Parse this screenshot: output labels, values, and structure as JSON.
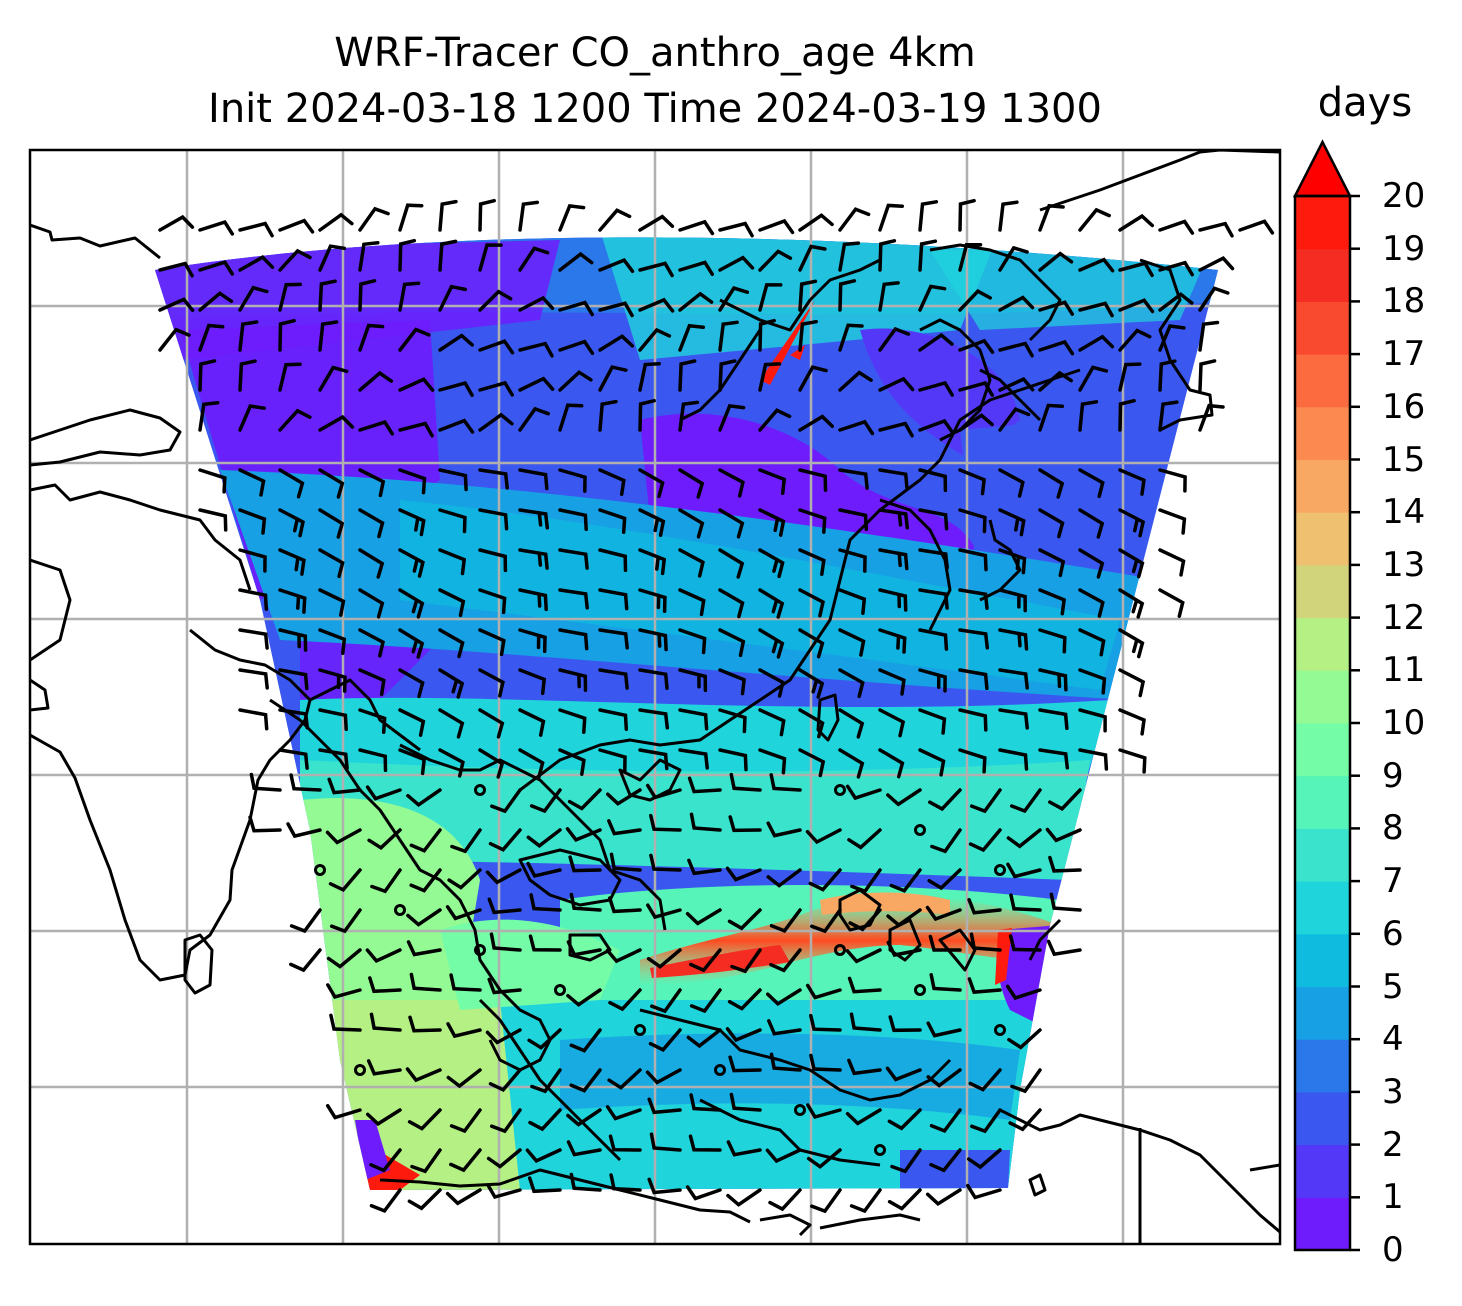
{
  "title": {
    "line1": "WRF-Tracer CO_anthro_age 4km",
    "line2": "Init 2024-03-18 1200 Time 2024-03-19 1300"
  },
  "colorbar": {
    "unit": "days",
    "ticks": [
      "0",
      "1",
      "2",
      "3",
      "4",
      "5",
      "6",
      "7",
      "8",
      "9",
      "10",
      "11",
      "12",
      "13",
      "14",
      "15",
      "16",
      "17",
      "18",
      "19",
      "20"
    ],
    "extend": "max",
    "colors": [
      "#6e1cfc",
      "#5438f8",
      "#3a58f0",
      "#2a78ea",
      "#17a0e4",
      "#0fbce0",
      "#20d4dc",
      "#3ae4cc",
      "#56f4b8",
      "#74fca6",
      "#94fb94",
      "#b4f084",
      "#d2d47c",
      "#eec070",
      "#f8a862",
      "#fc8a50",
      "#fc6a40",
      "#f94a30",
      "#f42c22",
      "#ff1a0e"
    ],
    "overflow_color": "#ff0000"
  },
  "map": {
    "field": "CO_anthro_age",
    "gridlines": true,
    "features": [
      "coastlines",
      "wind barbs",
      "calm wind circles"
    ]
  }
}
